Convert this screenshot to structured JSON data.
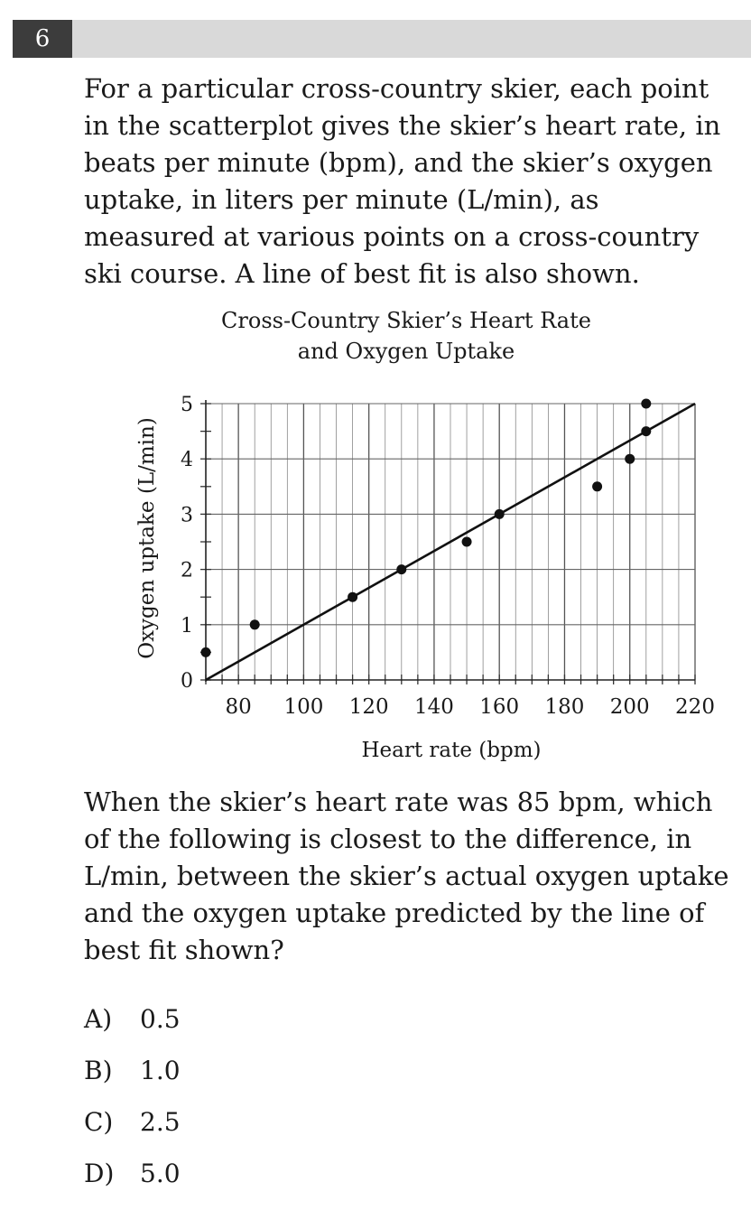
{
  "question": {
    "number": "6",
    "prompt": "For a particular cross-country skier, each point in the scatterplot gives the skier’s heart rate, in beats per minute (bpm), and the skier’s oxygen uptake, in liters per minute (L/min), as measured at various points on a cross-country ski course. A line of best fit is also shown.",
    "stem": "When the skier’s heart rate was 85 bpm, which of the following is closest to the difference, in L/min, between the skier’s actual oxygen uptake and the oxygen uptake predicted by the line of best fit shown?",
    "choices": [
      {
        "letter": "A)",
        "text": "0.5"
      },
      {
        "letter": "B)",
        "text": "1.0"
      },
      {
        "letter": "C)",
        "text": "2.5"
      },
      {
        "letter": "D)",
        "text": "5.0"
      }
    ]
  },
  "chart_data": {
    "type": "scatter",
    "title": "Cross-Country Skier’s Heart Rate",
    "subtitle": "and Oxygen Uptake",
    "xlabel": "Heart rate (bpm)",
    "ylabel": "Oxygen uptake (L/min)",
    "xlim": [
      70,
      220
    ],
    "ylim": [
      0,
      5
    ],
    "x_ticks": [
      "80",
      "100",
      "120",
      "140",
      "160",
      "180",
      "200",
      "220"
    ],
    "y_ticks": [
      "0",
      "1",
      "2",
      "3",
      "4",
      "5"
    ],
    "grid": true,
    "points": [
      {
        "x": 70,
        "y": 0.5
      },
      {
        "x": 85,
        "y": 1
      },
      {
        "x": 115,
        "y": 1.5
      },
      {
        "x": 130,
        "y": 2
      },
      {
        "x": 150,
        "y": 2.5
      },
      {
        "x": 160,
        "y": 3
      },
      {
        "x": 190,
        "y": 3.5
      },
      {
        "x": 200,
        "y": 4
      },
      {
        "x": 205,
        "y": 4.5
      },
      {
        "x": 205,
        "y": 5
      }
    ],
    "best_fit_line": {
      "x1": 70,
      "y1": 0,
      "x2": 220,
      "y2": 5
    }
  }
}
